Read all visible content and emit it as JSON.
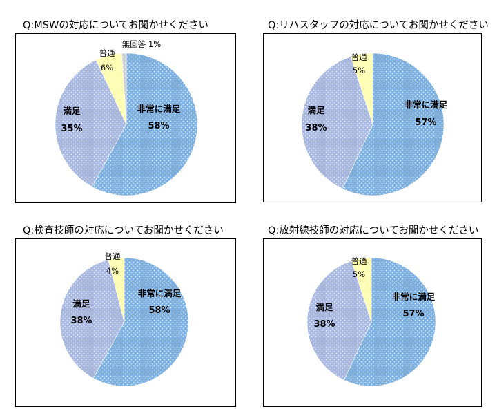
{
  "colors": {
    "very_satisfied": "#7fb2e3",
    "satisfied": "#a9b9e2",
    "normal": "#fefeb0",
    "no_answer": "#c9cfd6",
    "dots": "#ffffff"
  },
  "chart_data": [
    {
      "type": "pie",
      "title": "Q:MSWの対応についてお聞かせください",
      "slices": [
        {
          "label": "非常に満足",
          "value": 58,
          "pct": "58%",
          "color": "#7fb2e3"
        },
        {
          "label": "満足",
          "value": 35,
          "pct": "35%",
          "color": "#a9b9e2"
        },
        {
          "label": "普通",
          "value": 6,
          "pct": "6%",
          "color": "#fefeb0"
        },
        {
          "label": "無回答",
          "value": 1,
          "pct": "1%",
          "color": "#c9cfd6"
        }
      ]
    },
    {
      "type": "pie",
      "title": "Q:リハスタッフの対応についてお聞かせください",
      "slices": [
        {
          "label": "非常に満足",
          "value": 57,
          "pct": "57%",
          "color": "#7fb2e3"
        },
        {
          "label": "満足",
          "value": 38,
          "pct": "38%",
          "color": "#a9b9e2"
        },
        {
          "label": "普通",
          "value": 5,
          "pct": "5%",
          "color": "#fefeb0"
        }
      ]
    },
    {
      "type": "pie",
      "title": "Q:検査技師の対応についてお聞かせください",
      "slices": [
        {
          "label": "非常に満足",
          "value": 58,
          "pct": "58%",
          "color": "#7fb2e3"
        },
        {
          "label": "満足",
          "value": 38,
          "pct": "38%",
          "color": "#a9b9e2"
        },
        {
          "label": "普通",
          "value": 4,
          "pct": "4%",
          "color": "#fefeb0"
        }
      ]
    },
    {
      "type": "pie",
      "title": "Q:放射線技師の対応についてお聞かせください",
      "slices": [
        {
          "label": "非常に満足",
          "value": 57,
          "pct": "57%",
          "color": "#7fb2e3"
        },
        {
          "label": "満足",
          "value": 38,
          "pct": "38%",
          "color": "#a9b9e2"
        },
        {
          "label": "普通",
          "value": 5,
          "pct": "5%",
          "color": "#fefeb0"
        }
      ]
    }
  ]
}
